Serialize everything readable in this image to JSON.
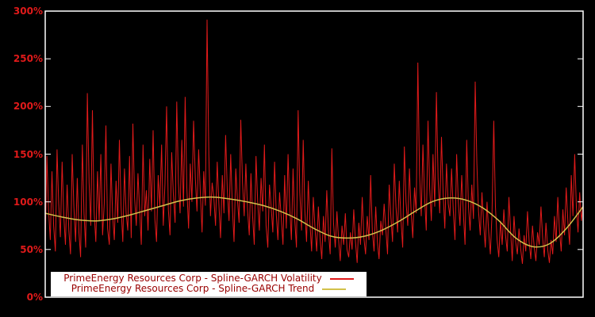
{
  "chart": {
    "background_color": "#000000",
    "border_color": "#ffffff",
    "axis_label_color": "#e01a1a",
    "legend_background_color": "#ffffff",
    "legend_text_color": "#990000"
  },
  "chart_data": {
    "type": "line",
    "title": "",
    "xlabel": "",
    "ylabel": "",
    "ylim": [
      0,
      300
    ],
    "grid": false,
    "legend_position": "bottom-center",
    "ytick_values": [
      0,
      50,
      100,
      150,
      200,
      250,
      300
    ],
    "ytick_labels": [
      "0%",
      "50%",
      "100%",
      "150%",
      "200%",
      "250%",
      "300%"
    ],
    "series": [
      {
        "name": "PrimeEnergy Resources Corp - Spline-GARCH Volatility",
        "color": "#e01a1a",
        "smooth": false,
        "values": [
          52,
          148,
          90,
          60,
          132,
          75,
          48,
          155,
          98,
          63,
          142,
          85,
          55,
          118,
          70,
          45,
          150,
          95,
          58,
          125,
          68,
          42,
          160,
          88,
          52,
          214,
          120,
          75,
          196,
          90,
          58,
          132,
          80,
          150,
          65,
          98,
          180,
          72,
          55,
          140,
          85,
          60,
          122,
          78,
          165,
          95,
          58,
          135,
          88,
          70,
          148,
          62,
          182,
          105,
          75,
          130,
          92,
          55,
          160,
          85,
          112,
          70,
          145,
          90,
          175,
          82,
          58,
          128,
          95,
          160,
          75,
          118,
          200,
          92,
          65,
          152,
          108,
          78,
          205,
          120,
          88,
          165,
          95,
          210,
          115,
          72,
          140,
          100,
          185,
          125,
          90,
          155,
          110,
          68,
          132,
          96,
          291,
          150,
          85,
          120,
          105,
          75,
          142,
          98,
          62,
          128,
          88,
          170,
          112,
          80,
          150,
          95,
          58,
          135,
          102,
          78,
          186,
          120,
          85,
          140,
          92,
          65,
          130,
          85,
          55,
          148,
          100,
          70,
          125,
          90,
          160,
          75,
          52,
          118,
          95,
          68,
          142,
          88,
          60,
          110,
          82,
          55,
          128,
          72,
          150,
          95,
          60,
          135,
          80,
          52,
          196,
          110,
          70,
          165,
          90,
          58,
          122,
          78,
          48,
          105,
          72,
          48,
          95,
          62,
          40,
          85,
          58,
          112,
          68,
          45,
          156,
          78,
          52,
          90,
          60,
          38,
          75,
          55,
          88,
          50,
          42,
          68,
          50,
          92,
          58,
          36,
          78,
          55,
          105,
          62,
          45,
          85,
          60,
          128,
          70,
          48,
          95,
          58,
          40,
          80,
          65,
          98,
          72,
          45,
          118,
          85,
          58,
          140,
          95,
          68,
          122,
          80,
          52,
          158,
          100,
          75,
          135,
          90,
          62,
          115,
          88,
          246,
          130,
          85,
          160,
          105,
          70,
          185,
          115,
          80,
          150,
          95,
          215,
          125,
          88,
          168,
          108,
          72,
          140,
          98,
          85,
          135,
          92,
          60,
          150,
          100,
          75,
          128,
          88,
          55,
          165,
          95,
          70,
          118,
          82,
          226,
          140,
          90,
          65,
          110,
          78,
          52,
          100,
          68,
          45,
          88,
          185,
          95,
          60,
          42,
          80,
          55,
          92,
          65,
          48,
          105,
          70,
          38,
          85,
          58,
          45,
          72,
          50,
          35,
          65,
          48,
          90,
          58,
          40,
          75,
          52,
          38,
          68,
          55,
          95,
          62,
          42,
          78,
          50,
          36,
          60,
          45,
          85,
          58,
          105,
          70,
          48,
          92,
          65,
          115,
          78,
          55,
          128,
          85,
          150,
          95,
          68,
          110,
          80,
          98
        ]
      },
      {
        "name": "PrimeEnergy Resources Corp - Spline-GARCH Trend",
        "color": "#d2c14a",
        "smooth": true,
        "values": [
          88,
          84,
          81,
          80,
          82,
          86,
          91,
          96,
          101,
          104,
          105,
          103,
          100,
          96,
          90,
          82,
          72,
          64,
          62,
          64,
          70,
          79,
          90,
          100,
          104,
          102,
          94,
          80,
          62,
          53,
          56,
          72,
          95
        ]
      }
    ]
  }
}
